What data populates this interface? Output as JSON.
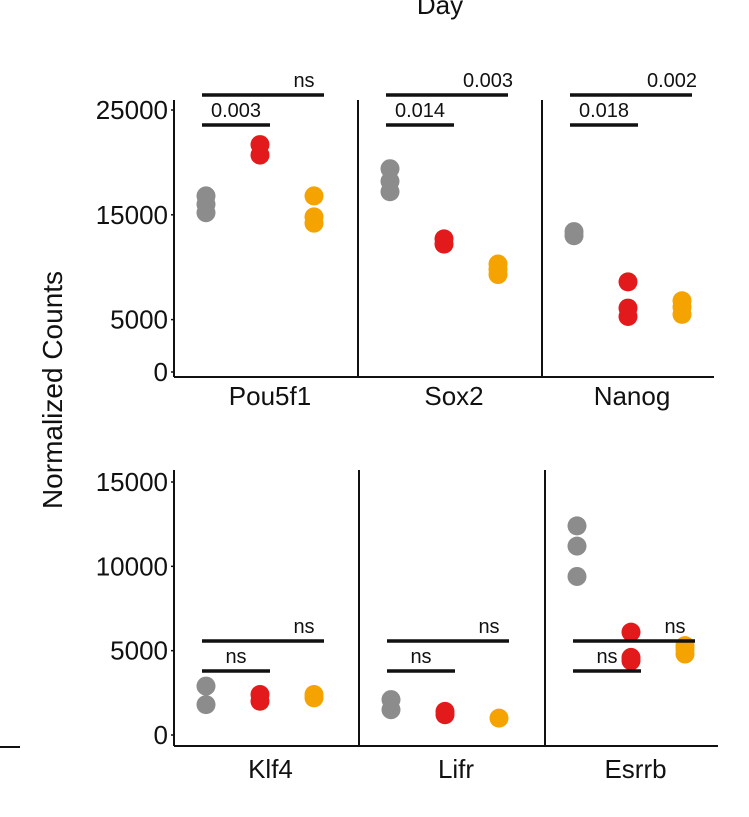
{
  "chart_data": {
    "type": "scatter",
    "top_label": "Day",
    "ylabel": "Normalized Counts",
    "colors": {
      "group1": "#8c8c8c",
      "group2": "#e31a1c",
      "group3": "#f5a300"
    },
    "rows": [
      {
        "ylim": [
          0,
          25000
        ],
        "ticks": [
          "25000",
          "15000",
          "5000",
          "0"
        ],
        "tick_values": [
          25000,
          15000,
          5000,
          0
        ],
        "panels": [
          {
            "gene": "Pou5f1",
            "groups": [
              [
                15200,
                16000,
                16800
              ],
              [
                20700,
                21700
              ],
              [
                14200,
                14800,
                16800
              ]
            ],
            "comparisons": [
              {
                "label": "0.003",
                "from": 0,
                "to": 1,
                "level": 0
              },
              {
                "label": "ns",
                "from": 0,
                "to": 2,
                "level": 1
              }
            ]
          },
          {
            "gene": "Sox2",
            "groups": [
              [
                17200,
                18200,
                19400
              ],
              [
                12200,
                12700
              ],
              [
                9300,
                9800,
                10300
              ]
            ],
            "comparisons": [
              {
                "label": "0.014",
                "from": 0,
                "to": 1,
                "level": 0
              },
              {
                "label": "0.003",
                "from": 0,
                "to": 2,
                "level": 1
              }
            ]
          },
          {
            "gene": "Nanog",
            "groups": [
              [
                13000,
                13400
              ],
              [
                5300,
                6100,
                8600
              ],
              [
                5500,
                6200,
                6800
              ]
            ],
            "comparisons": [
              {
                "label": "0.018",
                "from": 0,
                "to": 1,
                "level": 0
              },
              {
                "label": "0.002",
                "from": 0,
                "to": 2,
                "level": 1
              }
            ]
          }
        ]
      },
      {
        "ylim": [
          0,
          15000
        ],
        "ticks": [
          "15000",
          "10000",
          "5000",
          "0"
        ],
        "tick_values": [
          15000,
          10000,
          5000,
          0
        ],
        "panels": [
          {
            "gene": "Klf4",
            "groups": [
              [
                1800,
                2900
              ],
              [
                2000,
                2400
              ],
              [
                2200,
                2400
              ]
            ],
            "comparisons": [
              {
                "label": "ns",
                "from": 0,
                "to": 1,
                "level": 0
              },
              {
                "label": "ns",
                "from": 0,
                "to": 2,
                "level": 1
              }
            ]
          },
          {
            "gene": "Lifr",
            "groups": [
              [
                1500,
                2100
              ],
              [
                1200,
                1400
              ],
              [
                1000
              ]
            ],
            "comparisons": [
              {
                "label": "ns",
                "from": 0,
                "to": 1,
                "level": 0
              },
              {
                "label": "ns",
                "from": 0,
                "to": 2,
                "level": 1
              }
            ]
          },
          {
            "gene": "Esrrb",
            "groups": [
              [
                9400,
                11200,
                12400
              ],
              [
                4400,
                4600,
                6100
              ],
              [
                4800,
                5100,
                5300
              ]
            ],
            "comparisons": [
              {
                "label": "ns",
                "from": 0,
                "to": 1,
                "level": 0
              },
              {
                "label": "ns",
                "from": 0,
                "to": 2,
                "level": 1
              }
            ]
          }
        ]
      }
    ]
  }
}
